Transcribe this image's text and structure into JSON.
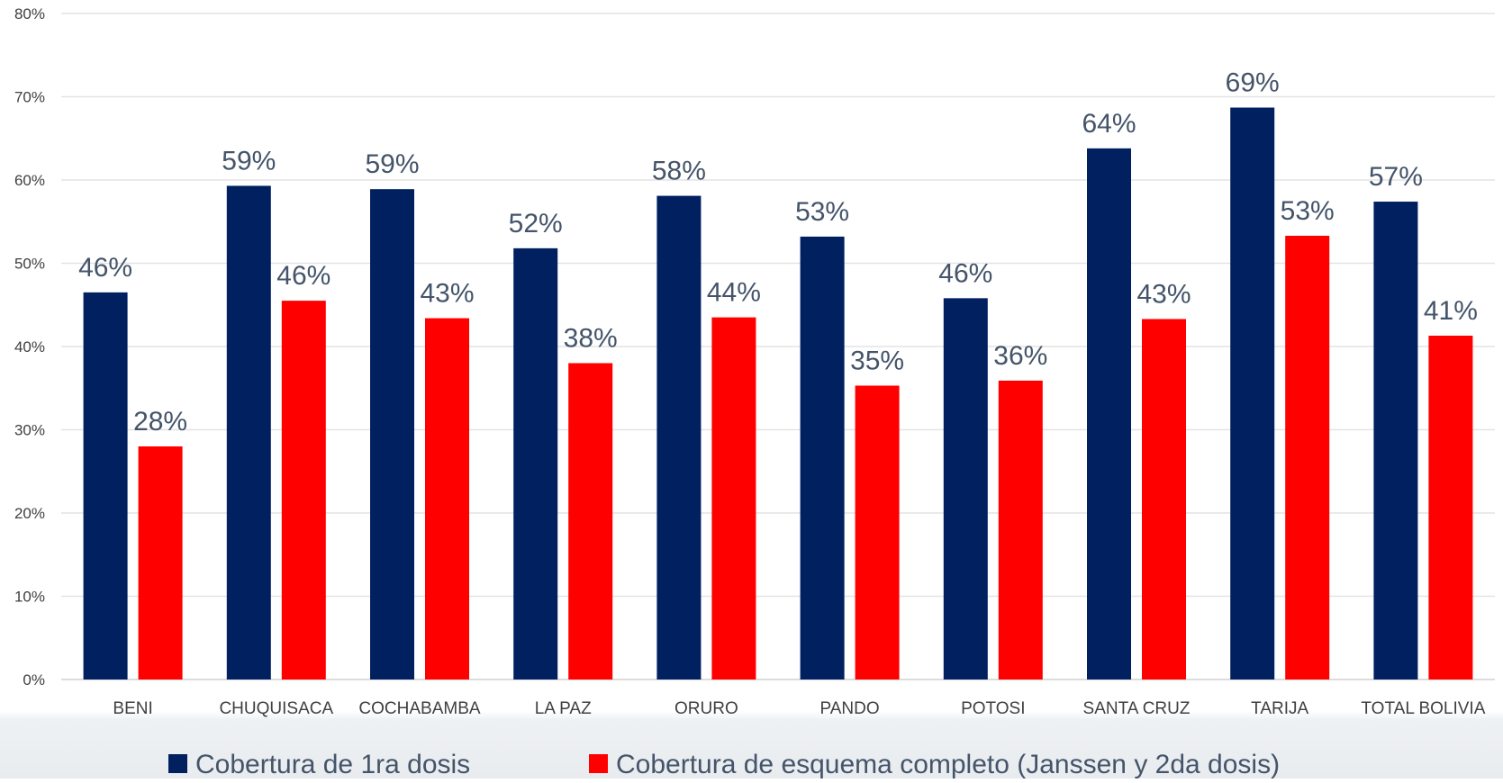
{
  "chart_data": {
    "type": "bar",
    "categories": [
      "BENI",
      "CHUQUISACA",
      "COCHABAMBA",
      "LA PAZ",
      "ORURO",
      "PANDO",
      "POTOSI",
      "SANTA CRUZ",
      "TARIJA",
      "TOTAL BOLIVIA"
    ],
    "series": [
      {
        "name": "Cobertura de 1ra dosis",
        "color": "#002060",
        "values": [
          46.5,
          59.3,
          58.9,
          51.8,
          58.1,
          53.2,
          45.8,
          63.8,
          68.7,
          57.4
        ],
        "labels": [
          "46%",
          "59%",
          "59%",
          "52%",
          "58%",
          "53%",
          "46%",
          "64%",
          "69%",
          "57%"
        ]
      },
      {
        "name": "Cobertura de esquema completo (Janssen y 2da dosis)",
        "color": "#ff0000",
        "values": [
          28.0,
          45.5,
          43.4,
          38.0,
          43.5,
          35.3,
          35.9,
          43.3,
          53.3,
          41.3
        ],
        "labels": [
          "28%",
          "46%",
          "43%",
          "38%",
          "44%",
          "35%",
          "36%",
          "43%",
          "53%",
          "41%"
        ]
      }
    ],
    "y_ticks": [
      "0%",
      "10%",
      "20%",
      "30%",
      "40%",
      "50%",
      "60%",
      "70%",
      "80%"
    ],
    "ylim": [
      0,
      80
    ],
    "grid": true,
    "legend_position": "bottom",
    "title": "",
    "xlabel": "",
    "ylabel": ""
  }
}
